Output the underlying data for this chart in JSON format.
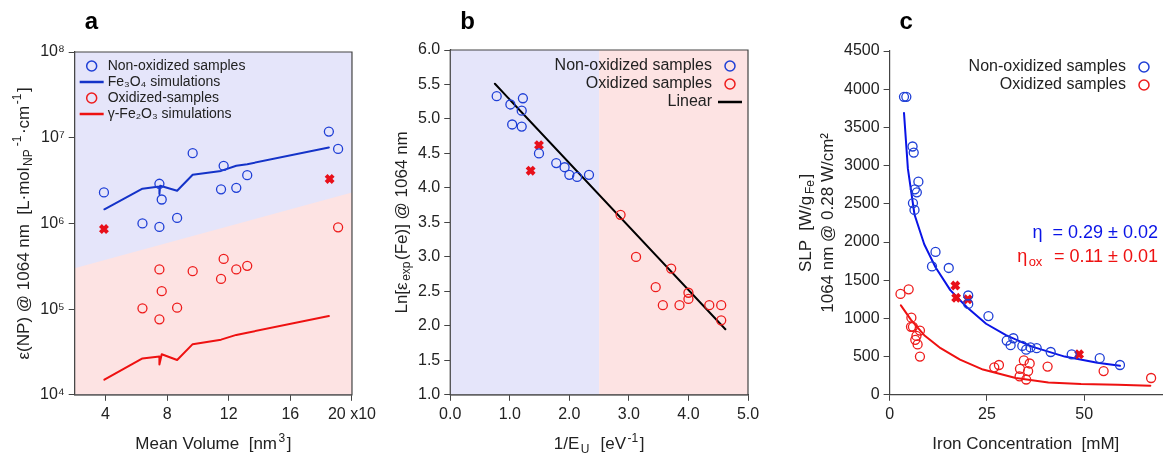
{
  "chart_data": [
    {
      "type": "scatter",
      "title": "a",
      "xlabel": "Mean Volume  [nm$^{3}$]",
      "ylabel": "ε(NP) @ 1064 nm  [L·mol$_{NP}$$^{-1}$·cm$^{-1}$]",
      "log": "y",
      "legend": "top left",
      "xlim": [
        2,
        20
      ],
      "xticks": [
        4,
        8,
        12,
        16,
        {
          "value": 20,
          "label": "20 x10"
        }
      ],
      "ylim": [
        10000,
        100000000
      ],
      "yticks": [
        {
          "value": 10000,
          "label": "10⁴"
        },
        {
          "value": 100000,
          "label": "10⁵"
        },
        {
          "value": 1000000,
          "label": "10⁶"
        },
        {
          "value": 10000000,
          "label": "10⁷"
        },
        {
          "value": 100000000,
          "label": "10⁸"
        }
      ],
      "series": [
        {
          "type": "scatter",
          "marker": "circle",
          "name": "Non-oxidized samples",
          "color": "#1f3fd6",
          "x": [
            3.9,
            6.4,
            7.5,
            7.5,
            7.65,
            8.65,
            9.66,
            11.5,
            11.67,
            12.49,
            13.2,
            18.5,
            19.1
          ],
          "values": [
            2300000,
            1000000,
            2900000,
            910000,
            1900000,
            1160000,
            6600000,
            2500000,
            4700000,
            2600000,
            3650000,
            11800000,
            7400000
          ]
        },
        {
          "type": "line",
          "marker": "none",
          "name": "Fe₃O₄ simulations",
          "color": "#1433c8",
          "x": [
            3.93,
            6.4,
            7.5,
            7.5,
            7.55,
            8.65,
            9.66,
            11.5,
            12.49,
            13.2,
            18.5
          ],
          "values": [
            1460000,
            2540000,
            2700000,
            2200000,
            2750000,
            2400000,
            3700000,
            4100000,
            4700000,
            4900000,
            7700000
          ]
        },
        {
          "type": "scatter",
          "marker": "circle",
          "name": "Oxidized-samples",
          "color": "#ee1c1c",
          "x": [
            6.4,
            7.5,
            7.5,
            7.65,
            8.65,
            9.66,
            11.5,
            11.67,
            12.49,
            13.2,
            19.1
          ],
          "values": [
            102000,
            290000,
            76000,
            162000,
            104000,
            277000,
            225000,
            385000,
            290000,
            320000,
            900000
          ]
        },
        {
          "type": "line",
          "marker": "none",
          "name": "γ-Fe₂O₃ simulations",
          "color": "#ee1111",
          "x": [
            3.93,
            6.4,
            7.5,
            7.5,
            7.65,
            8.65,
            9.66,
            11.5,
            12.49,
            13.2,
            18.5
          ],
          "values": [
            15000,
            26600,
            28000,
            22500,
            29700,
            25500,
            39000,
            44000,
            50000,
            53000,
            83000
          ]
        },
        {
          "type": "scatter",
          "marker": "cross",
          "color": "#e8101a",
          "x": [
            3.9,
            18.55
          ],
          "values": [
            860000,
            3300000
          ]
        },
        {
          "type": "area",
          "color": "#fde3e3",
          "x": [
            2,
            20
          ],
          "values": [
            300000,
            2300000
          ]
        }
      ]
    },
    {
      "type": "scatter",
      "title": "b",
      "xlabel": "1/E$_{U}$  [eV$^{-1}$]",
      "ylabel": "Ln[ε$_{exp}$(Fe)] @ 1064 nm",
      "legend": "top right",
      "xlim": [
        0,
        5
      ],
      "xticks": [
        {
          "value": 0,
          "label": "0.0"
        },
        {
          "value": 1,
          "label": "1.0"
        },
        {
          "value": 2,
          "label": "2.0"
        },
        {
          "value": 3,
          "label": "3.0"
        },
        {
          "value": 4,
          "label": "4.0"
        },
        {
          "value": 5,
          "label": "5.0"
        }
      ],
      "ylim": [
        1,
        6
      ],
      "yticks": [
        {
          "value": 1,
          "label": "1.0"
        },
        1.5,
        {
          "value": 2,
          "label": "2.0"
        },
        2.5,
        {
          "value": 3,
          "label": "3.0"
        },
        3.5,
        {
          "value": 4,
          "label": "4.0"
        },
        4.5,
        {
          "value": 5,
          "label": "5.0"
        },
        5.5,
        {
          "value": 6,
          "label": "6.0"
        }
      ],
      "bands": [
        {
          "axis": "x",
          "from": 0,
          "to": 2.5,
          "color": "#e5e5fa"
        },
        {
          "axis": "x",
          "from": 2.5,
          "to": 5,
          "color": "#fde3e3"
        }
      ],
      "series": [
        {
          "type": "scatter",
          "marker": "circle",
          "name": "Non-oxidized samples",
          "color": "#1f3fd6",
          "x": [
            0.78,
            1.01,
            1.04,
            1.22,
            1.2,
            1.2,
            1.49,
            1.78,
            1.92,
            2.0,
            2.13,
            2.33
          ],
          "values": [
            5.33,
            5.21,
            4.92,
            5.3,
            5.12,
            4.89,
            4.5,
            4.36,
            4.3,
            4.19,
            4.16,
            4.19
          ]
        },
        {
          "type": "scatter",
          "marker": "circle",
          "name": "Oxidized samples",
          "color": "#ee1c1c",
          "x": [
            2.86,
            3.12,
            3.45,
            3.57,
            3.71,
            3.85,
            4.0,
            4.0,
            4.35,
            4.55,
            4.55
          ],
          "values": [
            3.61,
            3.0,
            2.56,
            2.3,
            2.83,
            2.3,
            2.48,
            2.39,
            2.3,
            2.3,
            2.08
          ]
        },
        {
          "type": "line",
          "marker": "none",
          "name": "Linear",
          "color": "#000000",
          "x": [
            0.75,
            4.62
          ],
          "values": [
            5.51,
            1.95
          ]
        },
        {
          "type": "scatter",
          "marker": "cross",
          "color": "#e8101a",
          "x": [
            1.49,
            1.35
          ],
          "values": [
            4.62,
            4.25
          ]
        }
      ]
    },
    {
      "type": "scatter",
      "title": "c",
      "xlabel": "Iron Concentration  [mM]",
      "ylabel": "SLP  [W/g$_{Fe}$]\n1064 nm @ 0.28 W/cm²",
      "legend": "top right",
      "xlim": [
        0,
        70
      ],
      "xticks": [
        0,
        25,
        50
      ],
      "ylim": [
        0,
        4500
      ],
      "yticks": [
        0,
        500,
        1000,
        1500,
        2000,
        2500,
        3000,
        3500,
        4000,
        4500
      ],
      "annotations": [
        "η  = 0.29 ± 0.02",
        "η$_{ox}$  = 0.11 ± 0.01"
      ],
      "series": [
        {
          "type": "scatter",
          "marker": "circle",
          "name": "Non-oxidized samples",
          "color": "#1f3fd6",
          "x": [
            3.7,
            4.3,
            5.9,
            6.2,
            7.4,
            6.5,
            7.0,
            6.0,
            6.4,
            11.8,
            10.9,
            15.2,
            20.2,
            20.2,
            25.4,
            30.1,
            31.8,
            31.1,
            34.1,
            35.1,
            36.2,
            37.8,
            41.4,
            46.8,
            54.0,
            59.2
          ],
          "values": [
            3900,
            3900,
            3250,
            3170,
            2790,
            2690,
            2650,
            2510,
            2420,
            1870,
            1680,
            1660,
            1300,
            1190,
            1030,
            710,
            740,
            650,
            640,
            590,
            620,
            610,
            560,
            530,
            480,
            390
          ]
        },
        {
          "type": "scatter",
          "marker": "circle",
          "name": "Oxidized samples",
          "color": "#ee1c1c",
          "x": [
            2.8,
            4.9,
            5.6,
            5.5,
            6.0,
            7.8,
            6.6,
            6.9,
            7.2,
            7.8,
            26.9,
            28.1,
            33.5,
            34.5,
            36.0,
            35.6,
            33.4,
            35.1,
            40.6,
            55.0,
            67.2
          ],
          "values": [
            1320,
            1380,
            1010,
            890,
            890,
            840,
            720,
            770,
            660,
            500,
            360,
            390,
            340,
            450,
            410,
            310,
            240,
            200,
            370,
            310,
            220
          ]
        },
        {
          "type": "line",
          "marker": "none",
          "color": "#0a14e6",
          "x": [
            3.7,
            4.7,
            6.4,
            8.9,
            11.8,
            15.6,
            19.8,
            24.8,
            29.9,
            36.6,
            45,
            53.4,
            59.2
          ],
          "values": [
            3690,
            2960,
            2360,
            1970,
            1670,
            1370,
            1150,
            930,
            780,
            630,
            500,
            420,
            380
          ]
        },
        {
          "type": "line",
          "marker": "none",
          "color": "#ee1111",
          "x": [
            2.9,
            5.5,
            8.9,
            13.1,
            18.1,
            24.0,
            32.4,
            40.8,
            49.2,
            58.6,
            67
          ],
          "values": [
            1170,
            980,
            780,
            610,
            460,
            330,
            220,
            160,
            140,
            130,
            120
          ]
        },
        {
          "type": "scatter",
          "marker": "cross",
          "color": "#e8101a",
          "x": [
            16.9,
            17.1,
            20.1,
            48.7
          ],
          "values": [
            1430,
            1270,
            1250,
            530
          ]
        }
      ]
    }
  ]
}
